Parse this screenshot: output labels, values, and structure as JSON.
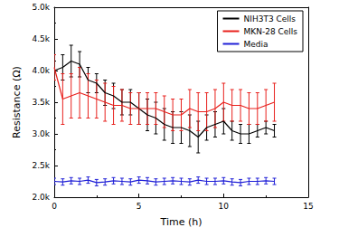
{
  "chart_data": {
    "type": "line",
    "x_label": "Time (h)",
    "y_label": "Resistance (Ω)",
    "x": [
      0,
      0.5,
      1,
      1.5,
      2,
      2.5,
      3,
      3.5,
      4,
      4.5,
      5,
      5.5,
      6,
      6.5,
      7,
      7.5,
      8,
      8.5,
      9,
      9.5,
      10,
      10.5,
      11,
      11.5,
      12,
      12.5,
      13
    ],
    "series": [
      {
        "name": "NIH3T3 Cells",
        "color": "#000000",
        "values": [
          4000,
          4050,
          4150,
          4100,
          3850,
          3800,
          3650,
          3600,
          3500,
          3500,
          3400,
          3300,
          3250,
          3150,
          3100,
          3100,
          3050,
          2950,
          3100,
          3150,
          3200,
          3050,
          3000,
          3000,
          3050,
          3100,
          3050
        ],
        "errors": [
          150,
          200,
          250,
          200,
          200,
          150,
          200,
          200,
          200,
          200,
          250,
          250,
          250,
          250,
          250,
          250,
          250,
          250,
          200,
          200,
          200,
          150,
          150,
          150,
          100,
          100,
          100
        ]
      },
      {
        "name": "MKN-28 Cells",
        "color": "#e8211d",
        "values": [
          4050,
          3550,
          3600,
          3650,
          3600,
          3550,
          3500,
          3450,
          3450,
          3400,
          3400,
          3400,
          3400,
          3350,
          3300,
          3300,
          3400,
          3350,
          3350,
          3400,
          3500,
          3450,
          3450,
          3400,
          3400,
          3450,
          3500
        ],
        "errors": [
          200,
          400,
          350,
          400,
          350,
          300,
          300,
          300,
          250,
          250,
          250,
          250,
          250,
          250,
          250,
          250,
          300,
          300,
          300,
          300,
          300,
          250,
          250,
          250,
          250,
          250,
          300
        ]
      },
      {
        "name": "Media",
        "color": "#1f1fd6",
        "values": [
          2250,
          2240,
          2260,
          2250,
          2270,
          2230,
          2240,
          2260,
          2250,
          2240,
          2270,
          2260,
          2240,
          2250,
          2260,
          2250,
          2240,
          2270,
          2250,
          2250,
          2260,
          2240,
          2230,
          2250,
          2250,
          2260,
          2250
        ],
        "errors": [
          50,
          50,
          50,
          50,
          50,
          50,
          50,
          50,
          50,
          50,
          50,
          50,
          50,
          50,
          50,
          50,
          50,
          50,
          50,
          50,
          50,
          50,
          50,
          50,
          50,
          50,
          50
        ]
      }
    ],
    "xlim": [
      0,
      15
    ],
    "xticks": [
      0,
      5,
      10,
      15
    ],
    "ylim": [
      2000,
      5000
    ],
    "yticks": [
      {
        "value": 2000,
        "label": "2.0k"
      },
      {
        "value": 2500,
        "label": "2.5k"
      },
      {
        "value": 3000,
        "label": "3.0k"
      },
      {
        "value": 3500,
        "label": "3.5k"
      },
      {
        "value": 4000,
        "label": "4.0k"
      },
      {
        "value": 4500,
        "label": "4.5k"
      },
      {
        "value": 5000,
        "label": "5.0k"
      }
    ],
    "legend": "upper right",
    "marker": "none",
    "line_style": "solid",
    "grid": false
  }
}
